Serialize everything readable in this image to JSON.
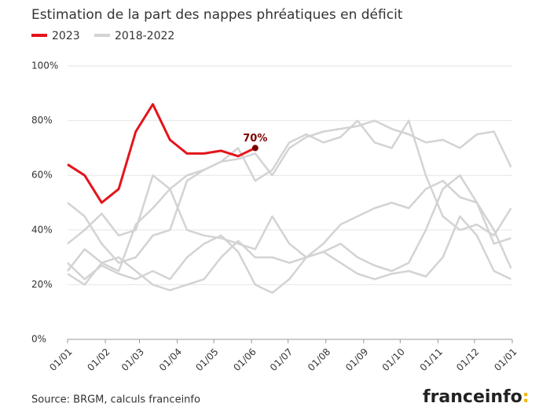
{
  "chart_data": {
    "type": "line",
    "title": "Estimation de la part des nappes phréatiques en déficit",
    "source": "Source: BRGM, calculs franceinfo",
    "brand": {
      "name": "franceinfo",
      "mark": ":"
    },
    "x": [
      0,
      14,
      28,
      42,
      56,
      70,
      84,
      98,
      112,
      126,
      140,
      154,
      168,
      182,
      196,
      210,
      224,
      238,
      252,
      266,
      280,
      294,
      308,
      322,
      336,
      350,
      364
    ],
    "xlim": [
      0,
      365
    ],
    "xticks": [
      {
        "value": 0,
        "label": "01/01"
      },
      {
        "value": 31,
        "label": "01/02"
      },
      {
        "value": 59,
        "label": "01/03"
      },
      {
        "value": 90,
        "label": "01/04"
      },
      {
        "value": 120,
        "label": "01/05"
      },
      {
        "value": 151,
        "label": "01/06"
      },
      {
        "value": 181,
        "label": "01/07"
      },
      {
        "value": 212,
        "label": "01/08"
      },
      {
        "value": 243,
        "label": "01/09"
      },
      {
        "value": 273,
        "label": "01/10"
      },
      {
        "value": 304,
        "label": "01/11"
      },
      {
        "value": 334,
        "label": "01/12"
      },
      {
        "value": 365,
        "label": "01/01"
      }
    ],
    "ylim": [
      0,
      100
    ],
    "yticks": [
      {
        "value": 0,
        "label": "0%"
      },
      {
        "value": 20,
        "label": "20%"
      },
      {
        "value": 40,
        "label": "40%"
      },
      {
        "value": 60,
        "label": "60%"
      },
      {
        "value": 80,
        "label": "80%"
      },
      {
        "value": 100,
        "label": "100%"
      }
    ],
    "grid": true,
    "series": [
      {
        "name": "2023",
        "color": "#e4141b",
        "values": [
          64,
          60,
          50,
          55,
          76,
          86,
          73,
          68,
          68,
          69,
          67,
          70,
          null,
          null,
          null,
          null,
          null,
          null,
          null,
          null,
          null,
          null,
          null,
          null,
          null,
          null,
          null
        ],
        "value_labels": [
          null,
          null,
          null,
          null,
          null,
          null,
          null,
          null,
          null,
          null,
          null,
          "70%",
          null,
          null,
          null,
          null,
          null,
          null,
          null,
          null,
          null,
          null,
          null,
          null,
          null,
          null,
          null
        ]
      },
      {
        "name": "2018-2022",
        "color": "#d3d3d3",
        "values": [
          [
            50,
            45,
            35,
            28,
            30,
            38,
            40,
            58,
            62,
            65,
            66,
            68,
            60,
            70,
            74,
            76,
            77,
            78,
            80,
            77,
            75,
            72,
            73,
            70,
            75,
            76,
            63
          ],
          [
            25,
            33,
            28,
            25,
            42,
            48,
            55,
            60,
            62,
            65,
            70,
            58,
            62,
            72,
            75,
            72,
            74,
            80,
            72,
            70,
            80,
            60,
            45,
            40,
            42,
            38,
            48
          ],
          [
            35,
            40,
            46,
            38,
            40,
            60,
            55,
            40,
            38,
            37,
            35,
            33,
            45,
            35,
            30,
            32,
            35,
            30,
            27,
            25,
            28,
            40,
            55,
            60,
            50,
            35,
            37
          ],
          [
            24,
            20,
            28,
            30,
            25,
            20,
            18,
            20,
            22,
            30,
            36,
            30,
            30,
            28,
            30,
            35,
            42,
            45,
            48,
            50,
            48,
            55,
            58,
            52,
            50,
            40,
            26
          ],
          [
            28,
            22,
            27,
            24,
            22,
            25,
            22,
            30,
            35,
            38,
            32,
            20,
            17,
            22,
            30,
            32,
            28,
            24,
            22,
            24,
            25,
            23,
            30,
            45,
            38,
            25,
            22
          ]
        ]
      }
    ]
  }
}
